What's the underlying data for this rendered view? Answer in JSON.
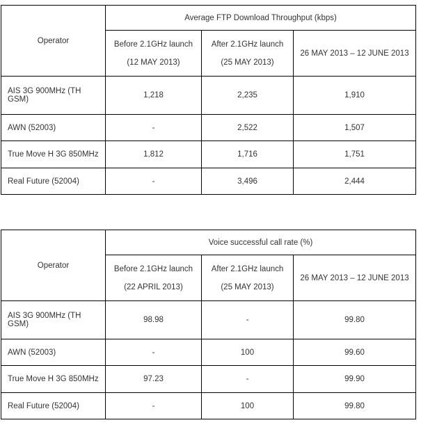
{
  "colors": {
    "background": "#ffffff",
    "border": "#000000",
    "text": "#333333"
  },
  "tables": [
    {
      "operator_header": "Operator",
      "title": "Average FTP Download Throughput (kbps)",
      "col_headers": [
        {
          "line1": "Before 2.1GHz launch",
          "line2": "(12 MAY 2013)"
        },
        {
          "line1": "After 2.1GHz launch",
          "line2": "(25 MAY 2013)"
        },
        {
          "line1": "26 MAY 2013 – 12 JUNE 2013"
        }
      ],
      "rows": [
        {
          "operator": "AIS 3G 900MHz (TH GSM)",
          "before": "1,218",
          "after": "2,235",
          "period": "1,910"
        },
        {
          "operator": "AWN (52003)",
          "before": "-",
          "after": "2,522",
          "period": "1,507"
        },
        {
          "operator": "True Move H 3G 850MHz",
          "before": "1,812",
          "after": "1,716",
          "period": "1,751"
        },
        {
          "operator": "Real Future (52004)",
          "before": "-",
          "after": "3,496",
          "period": "2,444"
        }
      ]
    },
    {
      "operator_header": "Operator",
      "title": "Voice successful call rate (%)",
      "col_headers": [
        {
          "line1": "Before 2.1GHz launch",
          "line2": "(22 APRIL 2013)"
        },
        {
          "line1": "After 2.1GHz launch",
          "line2": "(25 MAY 2013)"
        },
        {
          "line1": "26 MAY 2013 – 12 JUNE 2013"
        }
      ],
      "rows": [
        {
          "operator": "AIS 3G 900MHz (TH GSM)",
          "before": "98.98",
          "after": "-",
          "period": "99.80"
        },
        {
          "operator": "AWN (52003)",
          "before": "-",
          "after": "100",
          "period": "99.60"
        },
        {
          "operator": "True Move H 3G 850MHz",
          "before": "97.23",
          "after": "-",
          "period": "99.90"
        },
        {
          "operator": "Real Future (52004)",
          "before": "-",
          "after": "100",
          "period": "99.80"
        }
      ]
    }
  ]
}
